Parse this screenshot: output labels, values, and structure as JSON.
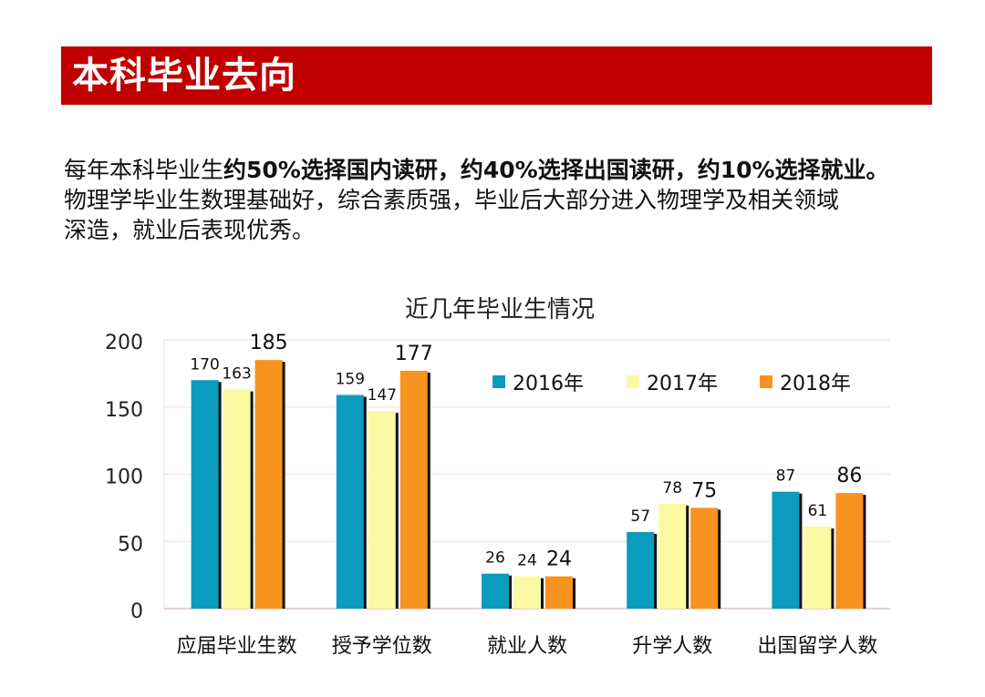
{
  "slide": {
    "title": "本科毕业去向",
    "paragraph": {
      "line1_plain": "每年本科毕业生",
      "line1_bold": "约50%选择国内读研，约40%选择出国读研，约10%选择就业。",
      "line2": "物理学毕业生数理基础好，综合素质强，毕业后大部分进入物理学及相关领域",
      "line3": "深造，就业后表现优秀。"
    }
  },
  "chart_data": {
    "type": "bar",
    "title": "近几年毕业生情况",
    "categories": [
      "应届毕业生数",
      "授予学位数",
      "就业人数",
      "升学人数",
      "出国留学人数"
    ],
    "series": [
      {
        "name": "2016年",
        "color": "#0a9bbf",
        "values": [
          170,
          159,
          26,
          57,
          87
        ]
      },
      {
        "name": "2017年",
        "color": "#fbf9a1",
        "values": [
          163,
          147,
          24,
          78,
          61
        ]
      },
      {
        "name": "2018年",
        "color": "#f7931e",
        "values": [
          185,
          177,
          24,
          75,
          86
        ]
      }
    ],
    "ylim": [
      0,
      200
    ],
    "yticks": [
      0,
      50,
      100,
      150,
      200
    ],
    "grid": true,
    "legend": "top-right"
  }
}
